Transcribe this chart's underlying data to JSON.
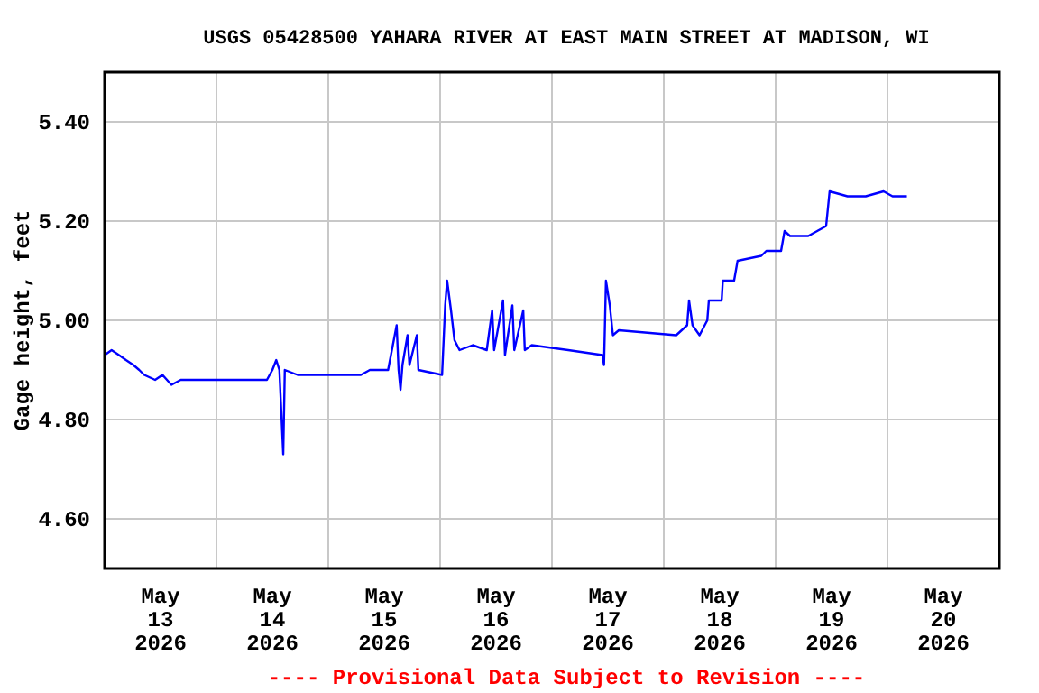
{
  "chart_data": {
    "type": "line",
    "title": "USGS 05428500 YAHARA RIVER AT EAST MAIN STREET AT MADISON, WI",
    "ylabel": "Gage height, feet",
    "annotations": [
      "---- Provisional Data Subject to Revision ----"
    ],
    "x": [
      "2026-05-13T00:00",
      "2026-05-13T01:30",
      "2026-05-13T03:05",
      "2026-05-13T04:35",
      "2026-05-13T06:10",
      "2026-05-13T07:25",
      "2026-05-13T08:30",
      "2026-05-13T10:50",
      "2026-05-13T12:25",
      "2026-05-13T14:20",
      "2026-05-13T16:20",
      "2026-05-14T10:50",
      "2026-05-14T12:00",
      "2026-05-14T12:50",
      "2026-05-14T13:30",
      "2026-05-14T14:20",
      "2026-05-14T14:40",
      "2026-05-14T17:25",
      "2026-05-15T07:00",
      "2026-05-15T08:55",
      "2026-05-15T12:50",
      "2026-05-15T14:40",
      "2026-05-15T15:05",
      "2026-05-15T15:30",
      "2026-05-15T15:55",
      "2026-05-15T17:00",
      "2026-05-15T17:25",
      "2026-05-15T19:00",
      "2026-05-15T19:20",
      "2026-05-16T00:25",
      "2026-05-16T01:05",
      "2026-05-16T01:30",
      "2026-05-16T02:20",
      "2026-05-16T03:05",
      "2026-05-16T04:10",
      "2026-05-16T07:00",
      "2026-05-16T10:00",
      "2026-05-16T11:10",
      "2026-05-16T11:35",
      "2026-05-16T13:30",
      "2026-05-16T13:55",
      "2026-05-16T15:30",
      "2026-05-16T15:55",
      "2026-05-16T17:50",
      "2026-05-16T18:10",
      "2026-05-16T19:40",
      "2026-05-17T03:30",
      "2026-05-17T10:50",
      "2026-05-17T11:10",
      "2026-05-17T11:35",
      "2026-05-17T12:25",
      "2026-05-17T13:05",
      "2026-05-17T14:20",
      "2026-05-18T02:40",
      "2026-05-18T03:50",
      "2026-05-18T05:00",
      "2026-05-18T05:25",
      "2026-05-18T06:10",
      "2026-05-18T07:40",
      "2026-05-18T09:20",
      "2026-05-18T09:40",
      "2026-05-18T12:25",
      "2026-05-18T12:40",
      "2026-05-18T15:05",
      "2026-05-18T15:50",
      "2026-05-18T20:55",
      "2026-05-18T22:00",
      "2026-05-19T01:10",
      "2026-05-19T01:55",
      "2026-05-19T03:05",
      "2026-05-19T07:00",
      "2026-05-19T08:55",
      "2026-05-19T10:50",
      "2026-05-19T11:35",
      "2026-05-19T15:25",
      "2026-05-19T19:20",
      "2026-05-19T23:10",
      "2026-05-20T01:05",
      "2026-05-20T04:10"
    ],
    "series": [
      {
        "color": "#0000ff",
        "values": [
          4.93,
          4.94,
          4.93,
          4.92,
          4.91,
          4.9,
          4.89,
          4.88,
          4.89,
          4.87,
          4.88,
          4.88,
          4.9,
          4.92,
          4.9,
          4.73,
          4.9,
          4.89,
          4.89,
          4.9,
          4.9,
          4.99,
          4.9,
          4.86,
          4.91,
          4.97,
          4.91,
          4.97,
          4.9,
          4.89,
          5.03,
          5.08,
          5.02,
          4.96,
          4.94,
          4.95,
          4.94,
          5.02,
          4.94,
          5.04,
          4.93,
          5.03,
          4.94,
          5.02,
          4.94,
          4.95,
          4.94,
          4.93,
          4.91,
          5.08,
          5.03,
          4.97,
          4.98,
          4.97,
          4.98,
          4.99,
          5.04,
          4.99,
          4.97,
          5.0,
          5.04,
          5.04,
          5.08,
          5.08,
          5.12,
          5.13,
          5.14,
          5.14,
          5.18,
          5.17,
          5.17,
          5.18,
          5.19,
          5.26,
          5.25,
          5.25,
          5.26,
          5.25,
          5.25
        ]
      }
    ],
    "xlim": [
      "2026-05-13T00:00",
      "2026-05-21T00:00"
    ],
    "xticks": [
      {
        "value": "2026-05-13T12:00",
        "label": "May 13 2026"
      },
      {
        "value": "2026-05-14T12:00",
        "label": "May 14 2026"
      },
      {
        "value": "2026-05-15T12:00",
        "label": "May 15 2026"
      },
      {
        "value": "2026-05-16T12:00",
        "label": "May 16 2026"
      },
      {
        "value": "2026-05-17T12:00",
        "label": "May 17 2026"
      },
      {
        "value": "2026-05-18T12:00",
        "label": "May 18 2026"
      },
      {
        "value": "2026-05-19T12:00",
        "label": "May 19 2026"
      },
      {
        "value": "2026-05-20T12:00",
        "label": "May 20 2026"
      },
      {
        "value": "2026-05-14T00:00",
        "label": null
      },
      {
        "value": "2026-05-15T00:00",
        "label": null
      },
      {
        "value": "2026-05-16T00:00",
        "label": null
      },
      {
        "value": "2026-05-17T00:00",
        "label": null
      },
      {
        "value": "2026-05-18T00:00",
        "label": null
      },
      {
        "value": "2026-05-19T00:00",
        "label": null
      },
      {
        "value": "2026-05-20T00:00",
        "label": null
      }
    ],
    "ylim": [
      4.5,
      5.5
    ],
    "yticks": [
      {
        "value": 4.6,
        "label": "4.60"
      },
      {
        "value": 4.8,
        "label": "4.80"
      },
      {
        "value": 5.0,
        "label": "5.00"
      },
      {
        "value": 5.2,
        "label": "5.20"
      },
      {
        "value": 5.4,
        "label": "5.40"
      }
    ],
    "grid": true
  }
}
